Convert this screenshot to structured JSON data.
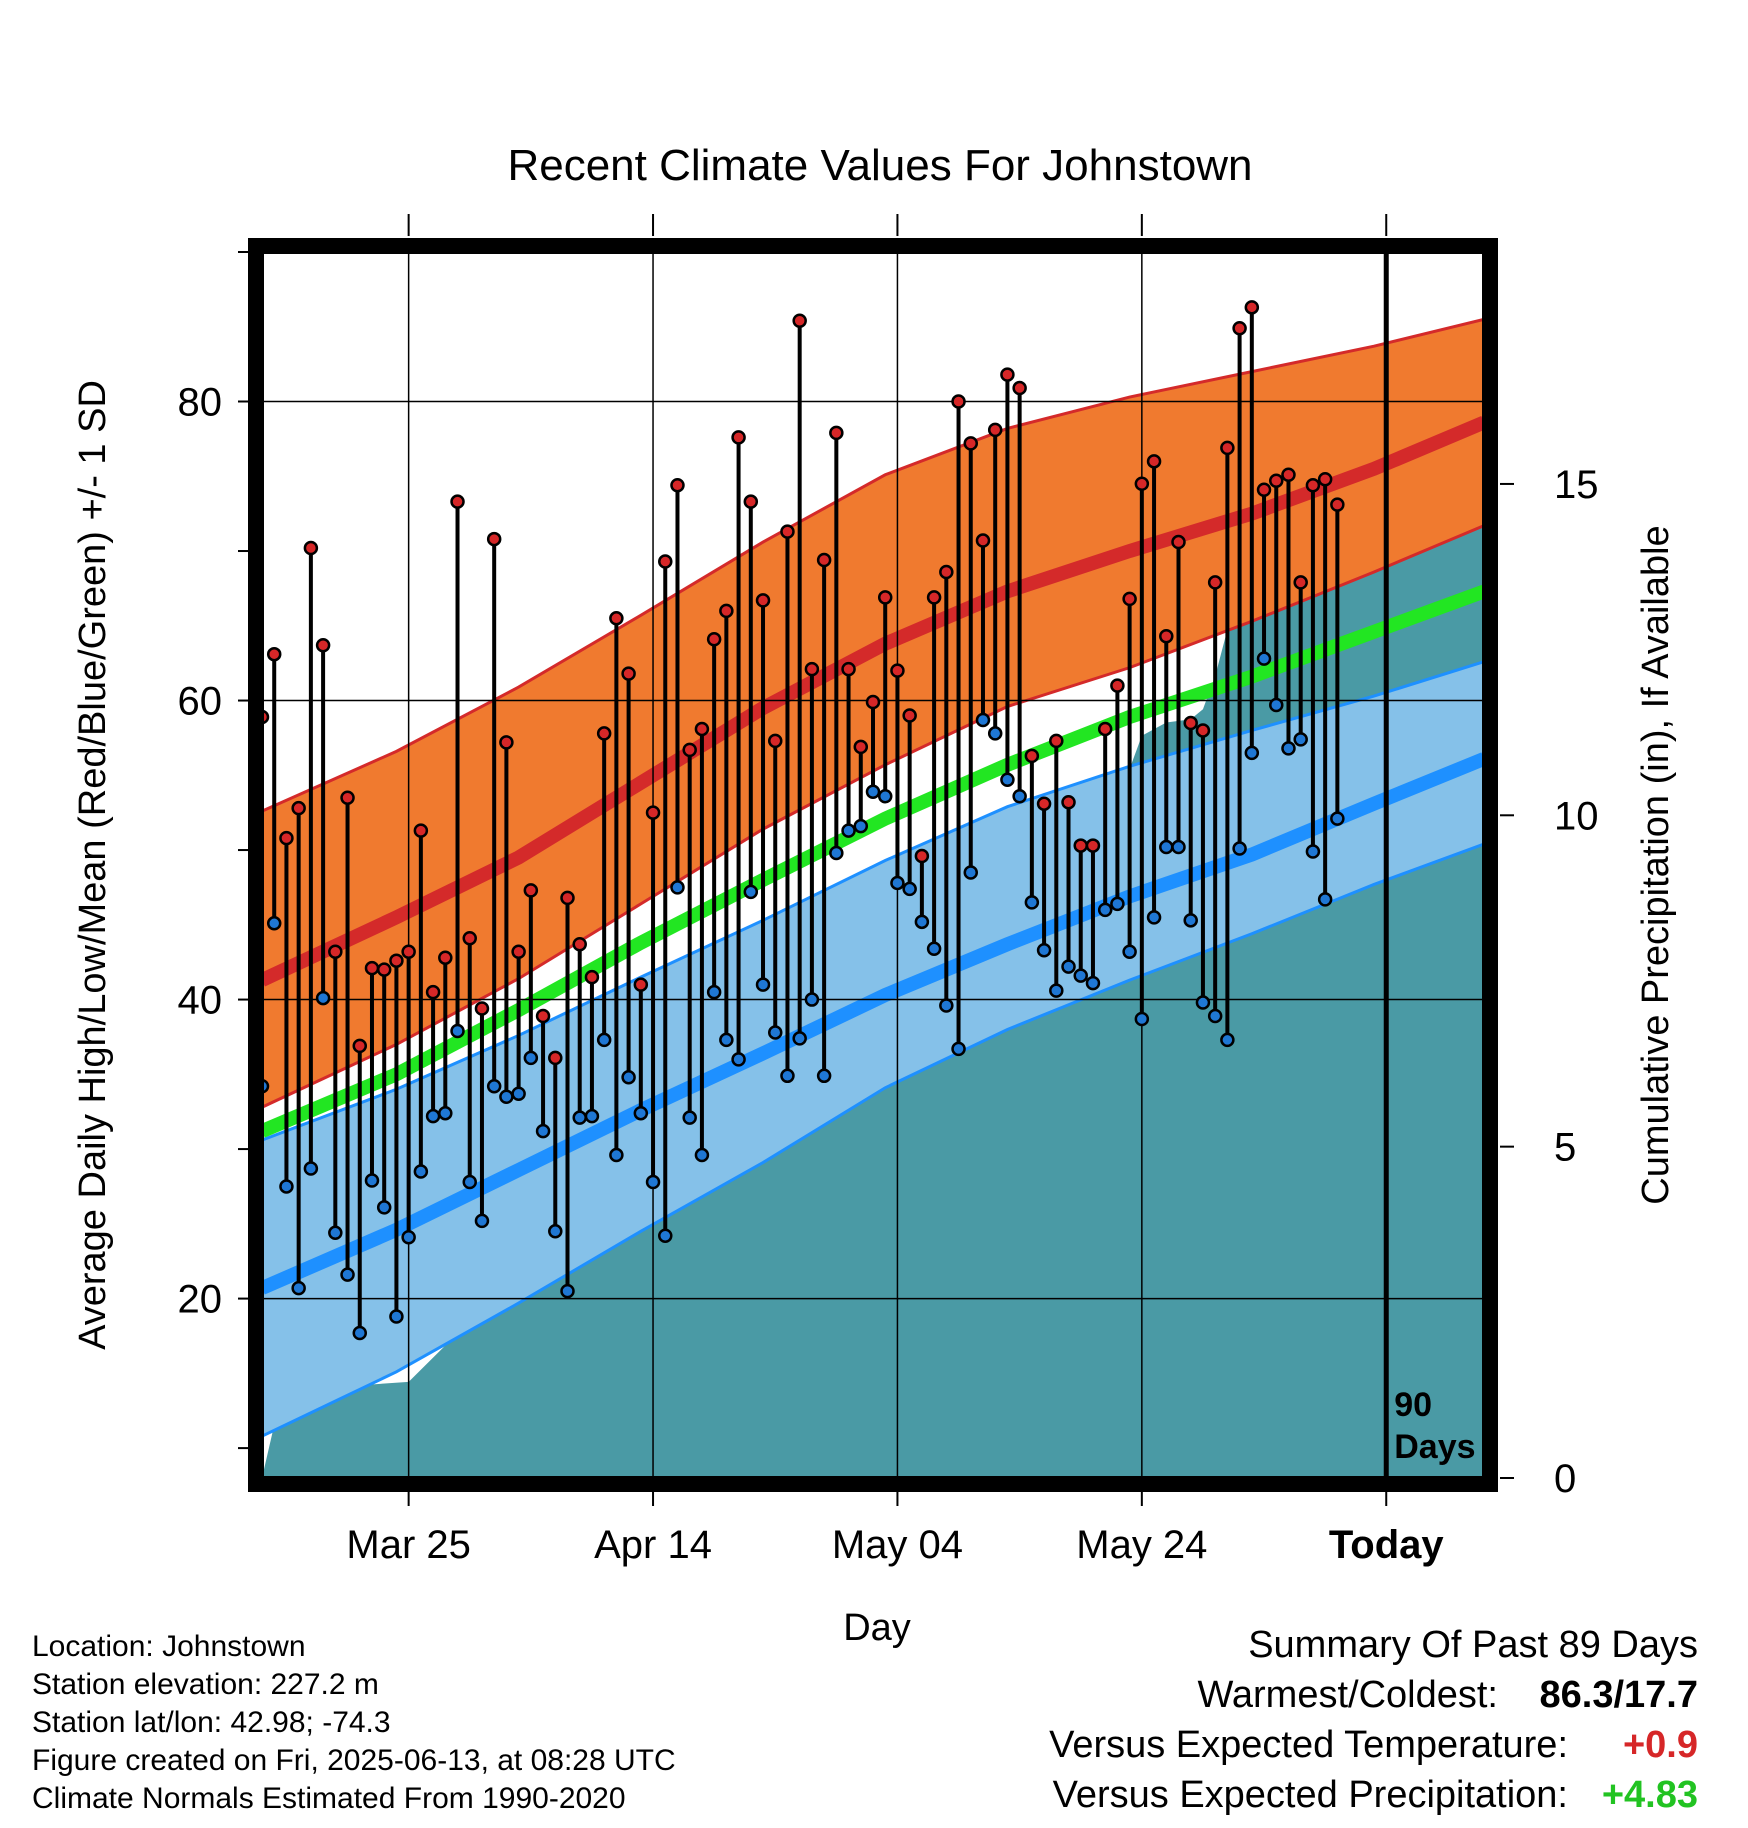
{
  "chart_data": {
    "type": "line",
    "title": "Recent Climate Values For Johnstown",
    "xlabel": "Day",
    "ylabel": "Average Daily High/Low/Mean (Red/Blue/Green) +/- 1 SD",
    "y2label": "Cumulative Precipitation (in), If Available",
    "xticks": [
      "Mar 25",
      "Apr 14",
      "May 04",
      "May 24",
      "Today"
    ],
    "yticks": [
      20,
      40,
      60,
      80
    ],
    "y2ticks": [
      0,
      5,
      10,
      15
    ],
    "ylim": [
      8,
      90
    ],
    "y2lim": [
      0,
      18.5
    ],
    "x_range_days": [
      -91,
      9
    ],
    "today_marker": "90\nDays",
    "normal_high": {
      "x": [
        -91,
        -80,
        -70,
        -60,
        -50,
        -40,
        -30,
        -20,
        -10,
        0,
        9
      ],
      "values": [
        41.3,
        45.5,
        49.5,
        54.5,
        59.5,
        63.8,
        67.3,
        70.0,
        72.5,
        75.5,
        78.6
      ]
    },
    "normal_high_sd": {
      "upper": [
        52.6,
        56.6,
        60.9,
        65.7,
        70.6,
        75.1,
        78.2,
        80.3,
        82.0,
        83.7,
        85.5
      ],
      "lower": [
        32.8,
        37.0,
        41.4,
        46.4,
        51.4,
        55.7,
        59.6,
        62.2,
        65.3,
        68.6,
        71.7
      ]
    },
    "normal_low": {
      "x": [
        -91,
        -80,
        -70,
        -60,
        -50,
        -40,
        -30,
        -20,
        -10,
        0,
        9
      ],
      "values": [
        20.7,
        24.6,
        28.6,
        32.6,
        36.4,
        40.3,
        43.7,
        46.9,
        49.7,
        53.1,
        56.1
      ]
    },
    "normal_low_sd": {
      "upper": [
        30.6,
        34.0,
        37.6,
        41.5,
        45.3,
        49.3,
        52.9,
        55.6,
        58.0,
        60.3,
        62.6
      ],
      "lower": [
        10.8,
        15.1,
        19.7,
        24.5,
        29.1,
        34.1,
        38.0,
        41.3,
        44.4,
        47.7,
        50.4
      ]
    },
    "normal_mean": {
      "x": [
        -91,
        -80,
        -70,
        -60,
        -50,
        -40,
        -30,
        -20,
        -10,
        0,
        9
      ],
      "values": [
        31.2,
        35.0,
        39.3,
        43.8,
        48.0,
        52.1,
        55.7,
        58.9,
        61.6,
        64.6,
        67.3
      ]
    },
    "series": [
      {
        "name": "High",
        "values": [
          58.9,
          63.1,
          50.8,
          52.8,
          70.2,
          63.7,
          43.2,
          53.5,
          36.9,
          42.1,
          42.0,
          42.6,
          43.2,
          51.3,
          40.5,
          42.8,
          73.3,
          44.1,
          39.4,
          70.8,
          57.2,
          43.2,
          47.3,
          38.9,
          36.1,
          46.8,
          43.7,
          41.5,
          57.8,
          65.5,
          61.8,
          41.0,
          52.5,
          69.3,
          74.4,
          56.7,
          58.1,
          64.1,
          66.0,
          77.6,
          73.3,
          66.7,
          57.3,
          71.3,
          85.4,
          62.1,
          69.4,
          77.9,
          62.1,
          56.9,
          59.9,
          66.9,
          62.0,
          59.0,
          49.6,
          66.9,
          68.6,
          80.0,
          77.2,
          70.7,
          78.1,
          81.8,
          80.9,
          56.3,
          53.1,
          57.3,
          53.2,
          50.3,
          50.3,
          58.1,
          61.0,
          66.8,
          74.5,
          76.0,
          64.3,
          70.6,
          58.5,
          58.0,
          67.9,
          76.9,
          84.9,
          86.3,
          74.1,
          74.7,
          75.1,
          67.9,
          74.4,
          74.8,
          73.1
        ]
      },
      {
        "name": "Low",
        "values": [
          34.2,
          45.1,
          27.5,
          20.7,
          28.7,
          40.1,
          24.4,
          21.6,
          17.7,
          27.9,
          26.1,
          18.8,
          24.1,
          28.5,
          32.2,
          32.4,
          37.9,
          27.8,
          25.2,
          34.2,
          33.5,
          33.7,
          36.1,
          31.2,
          24.5,
          20.5,
          32.1,
          32.2,
          37.3,
          29.6,
          34.8,
          32.4,
          27.8,
          24.2,
          47.5,
          32.1,
          29.6,
          40.5,
          37.3,
          36.0,
          47.2,
          41.0,
          37.8,
          34.9,
          37.4,
          40.0,
          34.9,
          49.8,
          51.3,
          51.6,
          53.9,
          53.6,
          47.8,
          47.4,
          45.2,
          43.4,
          39.6,
          36.7,
          48.5,
          58.7,
          57.8,
          54.7,
          53.6,
          46.5,
          43.3,
          40.6,
          42.2,
          41.6,
          41.1,
          46.0,
          46.4,
          43.2,
          38.7,
          45.5,
          50.2,
          50.2,
          45.3,
          39.8,
          38.9,
          37.3,
          50.1,
          56.5,
          62.8,
          59.7,
          56.8,
          57.4,
          49.9,
          46.7,
          52.1
        ]
      }
    ],
    "precip_x": [
      -91,
      -90,
      -89,
      -86,
      -83,
      -79,
      -76,
      -75,
      -72,
      -71,
      -70,
      -68,
      -67,
      -65,
      -60,
      -59,
      -55,
      -54,
      -51,
      -47,
      -46,
      -45,
      -44,
      -41,
      -39,
      -38,
      -37,
      -36,
      -35,
      -34,
      -33,
      -32,
      -29,
      -28,
      -27,
      -26,
      -25,
      -20,
      -19,
      -17,
      -15,
      -14,
      -13,
      -12,
      -11,
      -9,
      -8,
      -6,
      -5,
      -2,
      0,
      1,
      9
    ],
    "precip_cum": [
      0.0,
      0.8,
      1.05,
      1.3,
      1.4,
      1.45,
      2.0,
      2.15,
      2.5,
      3.1,
      3.45,
      4.0,
      4.1,
      4.25,
      4.75,
      4.95,
      5.15,
      5.5,
      5.6,
      6.0,
      6.55,
      6.5,
      6.9,
      7.15,
      7.6,
      8.15,
      8.7,
      9.5,
      9.5,
      9.5,
      9.5,
      9.75,
      9.8,
      9.95,
      10.1,
      10.15,
      10.45,
      10.7,
      11.2,
      11.4,
      11.45,
      11.6,
      12.1,
      12.8,
      13.0,
      14.05,
      14.5,
      14.9,
      15.0,
      15.0,
      15.0,
      15.0,
      15.0
    ]
  },
  "info": {
    "location": "Location: Johnstown",
    "elevation": "Station elevation: 227.2 m",
    "latlon": "Station lat/lon: 42.98; -74.3",
    "created": "Figure created on Fri, 2025-06-13, at 08:28 UTC",
    "normals": "Climate Normals Estimated From 1990-2020"
  },
  "summary": {
    "heading": "Summary Of Past 89 Days",
    "warmest_label": "Warmest/Coldest:",
    "warmest_value": "86.3/17.7",
    "temp_label": "Versus Expected Temperature:",
    "temp_value": "+0.9",
    "precip_label": "Versus Expected Precipitation:",
    "precip_value": "+4.83"
  },
  "colors": {
    "high_band": "#f07a2f",
    "high_line": "#d42a2a",
    "low_band": "#85c1e9",
    "low_line": "#1e90ff",
    "mean_line": "#22e622",
    "precip": "#4a9aa5",
    "high_dot": "#d62728",
    "low_dot": "#1f77d4"
  }
}
